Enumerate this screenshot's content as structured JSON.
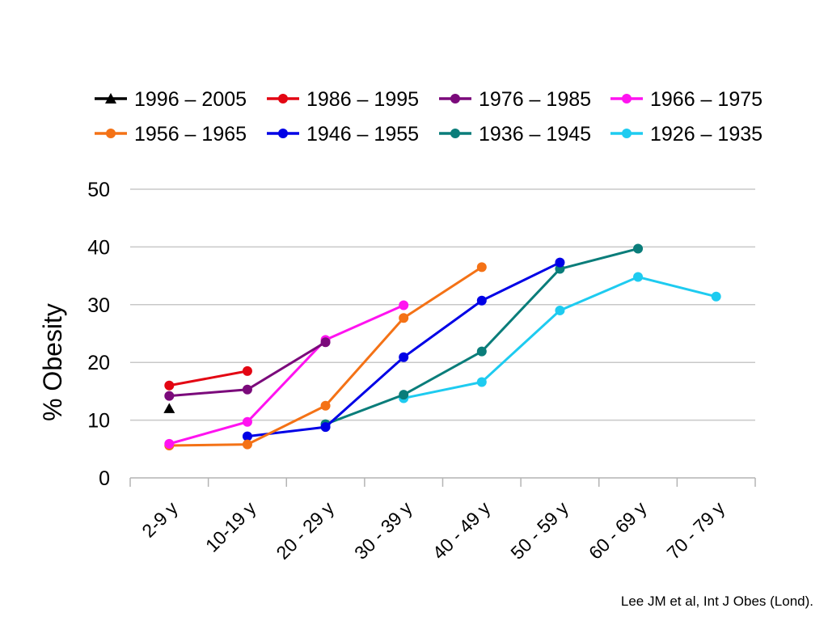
{
  "chart_data": {
    "type": "line",
    "ylabel": "% Obesity",
    "xlabel": "",
    "ylim": [
      0,
      50
    ],
    "yticks": [
      0,
      10,
      20,
      30,
      40,
      50
    ],
    "categories": [
      "2-9 y",
      "10-19 y",
      "20 - 29 y",
      "30 - 39 y",
      "40 - 49 y",
      "50 - 59 y",
      "60 - 69 y",
      "70 - 79 y"
    ],
    "grid": true,
    "legend_position": "top",
    "series": [
      {
        "name": "1996 – 2005",
        "color": "#000000",
        "marker": "triangle",
        "values": [
          12,
          null,
          null,
          null,
          null,
          null,
          null,
          null
        ]
      },
      {
        "name": "1986 – 1995",
        "color": "#e30613",
        "marker": "circle",
        "values": [
          16,
          18.5,
          null,
          null,
          null,
          null,
          null,
          null
        ]
      },
      {
        "name": "1976 – 1985",
        "color": "#7b0a7b",
        "marker": "circle",
        "values": [
          14.2,
          15.3,
          23.5,
          null,
          null,
          null,
          null,
          null
        ]
      },
      {
        "name": "1966 – 1975",
        "color": "#ff13f0",
        "marker": "circle",
        "values": [
          5.9,
          9.7,
          23.9,
          29.9,
          null,
          null,
          null,
          null
        ]
      },
      {
        "name": "1956 – 1965",
        "color": "#f47216",
        "marker": "circle",
        "values": [
          5.6,
          5.8,
          12.5,
          27.7,
          36.5,
          null,
          null,
          null
        ]
      },
      {
        "name": "1946 – 1955",
        "color": "#0000e6",
        "marker": "circle",
        "values": [
          null,
          7.2,
          8.8,
          20.9,
          30.7,
          37.3,
          null,
          null
        ]
      },
      {
        "name": "1936 – 1945",
        "color": "#0a7d7a",
        "marker": "circle",
        "values": [
          null,
          null,
          9.3,
          14.4,
          21.9,
          36.2,
          39.7,
          null
        ]
      },
      {
        "name": "1926 – 1935",
        "color": "#1ecbf0",
        "marker": "circle",
        "values": [
          null,
          null,
          null,
          13.8,
          16.6,
          29,
          34.8,
          31.4
        ]
      }
    ]
  },
  "source_text": "Lee JM et al, Int J Obes (Lond)."
}
